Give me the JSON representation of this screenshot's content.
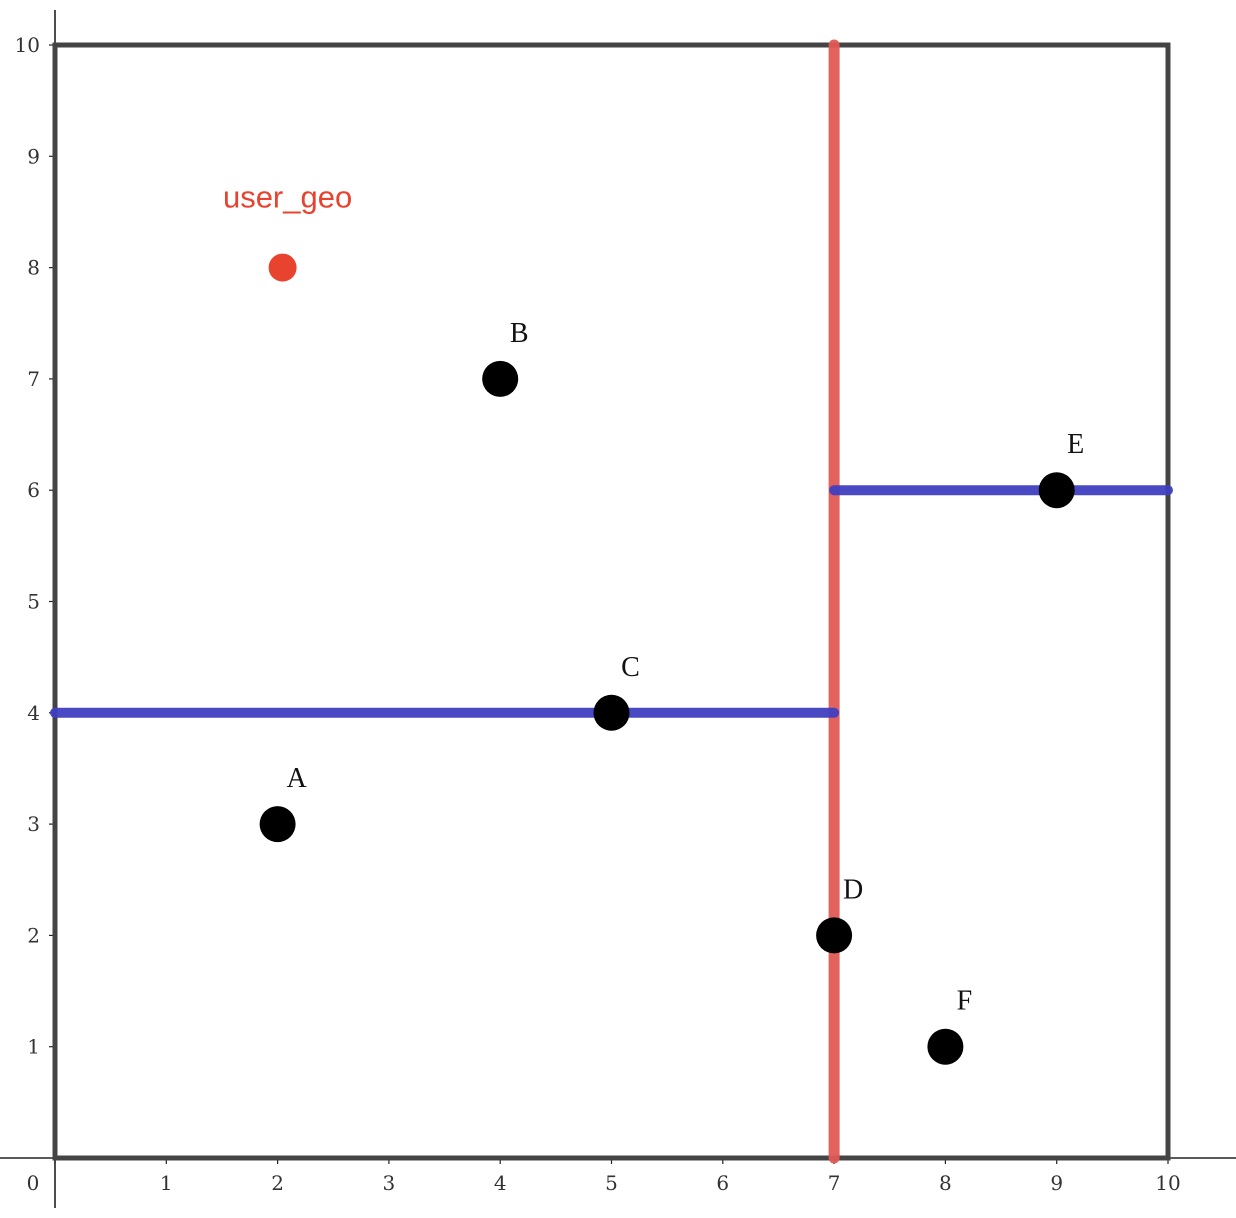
{
  "chart_data": {
    "type": "scatter",
    "title": "",
    "xlabel": "",
    "ylabel": "",
    "xlim": [
      0,
      10
    ],
    "ylim": [
      0,
      10
    ],
    "xticks": [
      "0",
      "1",
      "2",
      "3",
      "4",
      "5",
      "6",
      "7",
      "8",
      "9",
      "10"
    ],
    "yticks": [
      "1",
      "2",
      "3",
      "4",
      "5",
      "6",
      "7",
      "8",
      "9",
      "10"
    ],
    "points": [
      {
        "label": "A",
        "x": 2,
        "y": 3
      },
      {
        "label": "B",
        "x": 4,
        "y": 7
      },
      {
        "label": "C",
        "x": 5,
        "y": 4
      },
      {
        "label": "D",
        "x": 7,
        "y": 2
      },
      {
        "label": "E",
        "x": 9,
        "y": 6
      },
      {
        "label": "F",
        "x": 8,
        "y": 1
      }
    ],
    "query_point": {
      "label": "user_geo",
      "x": 2,
      "y": 8,
      "color": "#e8432e"
    },
    "boundary_box": {
      "x": [
        0,
        10
      ],
      "y": [
        0,
        10
      ],
      "color": "#444444"
    },
    "splits": [
      {
        "orientation": "vertical",
        "at": 7,
        "from": 0,
        "to": 10,
        "color": "#e05a55"
      },
      {
        "orientation": "horizontal",
        "at": 4,
        "from": 0,
        "to": 7,
        "color": "#3f3fc0"
      },
      {
        "orientation": "horizontal",
        "at": 6,
        "from": 7,
        "to": 10,
        "color": "#3f3fc0"
      }
    ],
    "grid": false,
    "legend": "none",
    "colors": {
      "point": "#000000",
      "axis": "#222222"
    }
  }
}
